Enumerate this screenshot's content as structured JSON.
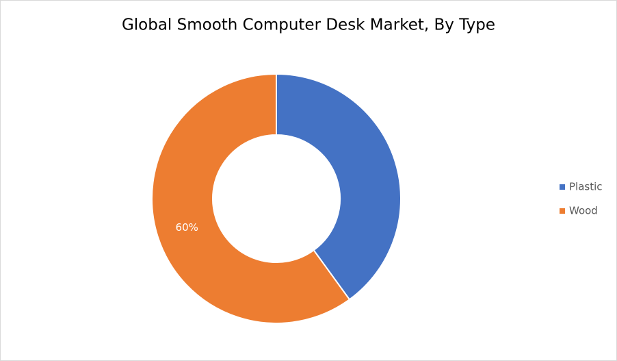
{
  "chart_data": {
    "type": "donut",
    "title": "Global Smooth Computer Desk Market, By Type",
    "categories": [
      "Plastic",
      "Wood"
    ],
    "values": [
      40,
      60
    ],
    "value_labels": [
      null,
      "60%"
    ],
    "colors": [
      "#4472c4",
      "#ed7d31"
    ],
    "legend": "right"
  }
}
